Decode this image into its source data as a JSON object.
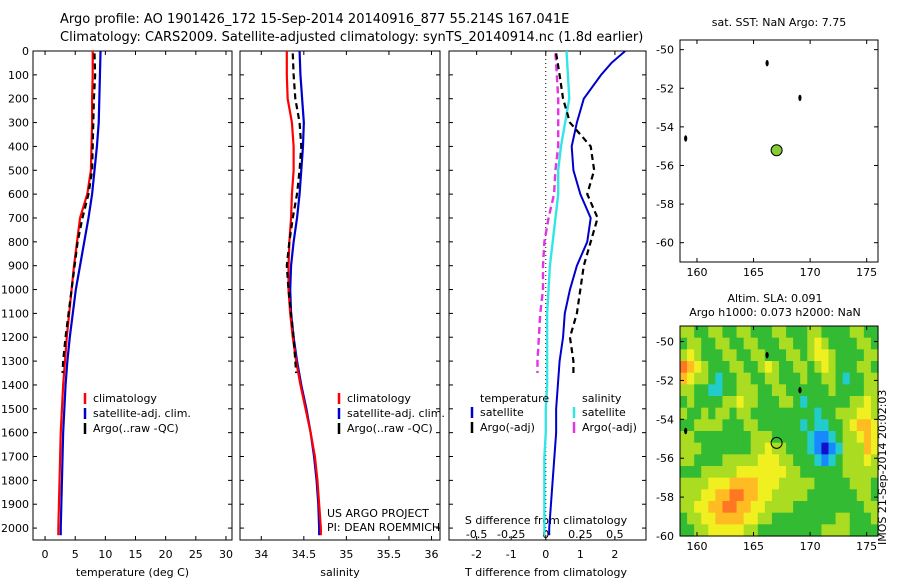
{
  "header": {
    "line1": "Argo profile: AO 1901426_172 15-Sep-2014 20140916_877 55.214S 167.041E",
    "line2": "Climatology: CARS2009. Satellite-adjusted climatology: synTS_20140914.nc (1.8d earlier)"
  },
  "colors": {
    "climatology": "#ff0000",
    "satellite": "#0000cc",
    "argo": "#000000",
    "diff_t_argo": "#000000",
    "diff_s_sat": "#33e6e6",
    "diff_s_argo": "#e633e6",
    "float_marker": "#88cc33"
  },
  "depth_ticks": [
    "0",
    "100",
    "200",
    "300",
    "400",
    "500",
    "600",
    "700",
    "800",
    "900",
    "1000",
    "1100",
    "1200",
    "1300",
    "1400",
    "1500",
    "1600",
    "1700",
    "1800",
    "1900",
    "2000"
  ],
  "chart_data": [
    {
      "type": "line",
      "xlabel": "temperature (deg C)",
      "xlim": [
        -2,
        31
      ],
      "ylim": [
        2050,
        0
      ],
      "xticks": [
        "0",
        "5",
        "10",
        "15",
        "20",
        "25",
        "30"
      ],
      "legend": [
        "climatology",
        "satellite-adj. clim.",
        "Argo(..raw -QC)"
      ],
      "series": [
        {
          "name": "climatology",
          "depth": [
            0,
            100,
            200,
            300,
            400,
            500,
            600,
            700,
            800,
            900,
            1000,
            1100,
            1200,
            1300,
            1400,
            1500,
            1600,
            1700,
            1800,
            1900,
            2000,
            2030
          ],
          "values": [
            7.9,
            7.9,
            7.8,
            7.8,
            7.7,
            7.6,
            7.0,
            5.8,
            5.3,
            4.8,
            4.4,
            4.0,
            3.6,
            3.3,
            3.0,
            2.8,
            2.6,
            2.5,
            2.4,
            2.3,
            2.2,
            2.2
          ]
        },
        {
          "name": "satellite-adj. clim.",
          "depth": [
            0,
            100,
            200,
            300,
            400,
            500,
            600,
            700,
            800,
            900,
            1000,
            1100,
            1200,
            1300,
            1400,
            1500,
            1600,
            1700,
            1800,
            1900,
            2000,
            2030
          ],
          "values": [
            9.2,
            9.1,
            9.0,
            8.9,
            8.6,
            8.2,
            7.8,
            7.2,
            6.5,
            5.8,
            5.1,
            4.6,
            4.1,
            3.7,
            3.4,
            3.2,
            3.0,
            2.9,
            2.8,
            2.7,
            2.6,
            2.6
          ]
        },
        {
          "name": "Argo(..raw -QC)",
          "depth": [
            10,
            100,
            200,
            300,
            400,
            500,
            600,
            700,
            800,
            900,
            1000,
            1100,
            1200,
            1300,
            1350
          ],
          "values": [
            8.2,
            8.3,
            8.1,
            8.0,
            7.9,
            7.8,
            7.2,
            6.2,
            5.4,
            4.9,
            4.4,
            3.9,
            3.4,
            3.0,
            2.9
          ]
        }
      ]
    },
    {
      "type": "line",
      "xlabel": "salinity",
      "xlim": [
        33.75,
        36.1
      ],
      "ylim": [
        2050,
        0
      ],
      "xticks": [
        "34",
        "34.5",
        "35",
        "35.5",
        "36"
      ],
      "legend": [
        "climatology",
        "satellite-adj. clim.",
        "Argo(..raw -QC)"
      ],
      "series": [
        {
          "name": "climatology",
          "depth": [
            0,
            100,
            200,
            300,
            400,
            500,
            600,
            700,
            800,
            900,
            1000,
            1100,
            1200,
            1300,
            1400,
            1500,
            1600,
            1700,
            1800,
            1900,
            2000,
            2030
          ],
          "values": [
            34.3,
            34.3,
            34.31,
            34.36,
            34.38,
            34.38,
            34.36,
            34.35,
            34.33,
            34.32,
            34.32,
            34.34,
            34.37,
            34.41,
            34.46,
            34.52,
            34.58,
            34.63,
            34.66,
            34.68,
            34.7,
            34.7
          ]
        },
        {
          "name": "satellite-adj. clim.",
          "depth": [
            0,
            100,
            200,
            300,
            400,
            500,
            600,
            700,
            800,
            900,
            1000,
            1100,
            1200,
            1300,
            1400,
            1500,
            1600,
            1700,
            1800,
            1900,
            2000,
            2030
          ],
          "values": [
            34.45,
            34.46,
            34.48,
            34.5,
            34.49,
            34.47,
            34.45,
            34.42,
            34.38,
            34.35,
            34.34,
            34.35,
            34.38,
            34.42,
            34.47,
            34.53,
            34.58,
            34.62,
            34.65,
            34.67,
            34.68,
            34.68
          ]
        },
        {
          "name": "Argo(..raw -QC)",
          "depth": [
            10,
            100,
            200,
            300,
            400,
            500,
            600,
            700,
            800,
            900,
            1000,
            1100,
            1200,
            1300,
            1350
          ],
          "values": [
            34.37,
            34.38,
            34.4,
            34.45,
            34.47,
            34.45,
            34.42,
            34.37,
            34.33,
            34.3,
            34.32,
            34.35,
            34.38,
            34.4,
            34.41
          ]
        }
      ],
      "annotation": [
        "US ARGO PROJECT",
        "PI: DEAN ROEMMICH"
      ]
    },
    {
      "type": "line",
      "xlabel": "T difference from climatology",
      "xlabel_top": "S difference from climatology",
      "xlim": [
        -2.8,
        2.9
      ],
      "ylim": [
        2050,
        0
      ],
      "xticks": [
        "-2",
        "-1",
        "0",
        "1",
        "2"
      ],
      "xticks_top": [
        "-0.5",
        "-0.25",
        "0",
        "0.25",
        "0.5"
      ],
      "legend_left": {
        "heading": "temperature",
        "entries": [
          "satellite",
          "Argo(-adj)"
        ]
      },
      "legend_right": {
        "heading": "salinity",
        "entries": [
          "satellite",
          "Argo(-adj)"
        ]
      },
      "series": [
        {
          "name": "satellite",
          "group": "temperature",
          "depth": [
            0,
            50,
            100,
            200,
            300,
            400,
            500,
            600,
            700,
            800,
            900,
            1000,
            1100,
            1200,
            1300,
            1400,
            1500,
            1600,
            1700,
            1800,
            1900,
            2000,
            2030
          ],
          "values": [
            2.3,
            1.9,
            1.6,
            1.1,
            0.9,
            0.75,
            0.8,
            1.0,
            1.3,
            1.2,
            0.9,
            0.7,
            0.55,
            0.5,
            0.4,
            0.35,
            0.3,
            0.3,
            0.25,
            0.2,
            0.15,
            0.1,
            0.1
          ]
        },
        {
          "name": "Argo(-adj)",
          "group": "temperature",
          "depth": [
            10,
            100,
            200,
            300,
            400,
            500,
            600,
            700,
            800,
            900,
            1000,
            1100,
            1200,
            1300,
            1350
          ],
          "values": [
            0.3,
            0.4,
            0.5,
            0.7,
            1.3,
            1.4,
            1.2,
            1.5,
            1.3,
            1.1,
            1.0,
            0.9,
            0.7,
            0.8,
            0.8
          ]
        },
        {
          "name": "satellite",
          "group": "salinity",
          "depth": [
            0,
            100,
            200,
            300,
            400,
            500,
            600,
            700,
            800,
            900,
            1000,
            1100,
            1200,
            1300,
            1400,
            1500,
            1600,
            1700,
            1800,
            1900,
            2000,
            2030
          ],
          "values": [
            0.15,
            0.16,
            0.17,
            0.14,
            0.11,
            0.09,
            0.09,
            0.07,
            0.05,
            0.03,
            0.02,
            0.01,
            0.01,
            0.01,
            0.01,
            0.0,
            0.0,
            -0.01,
            -0.01,
            -0.01,
            -0.01,
            -0.01
          ]
        },
        {
          "name": "Argo(-adj)",
          "group": "salinity",
          "depth": [
            10,
            100,
            200,
            300,
            400,
            500,
            600,
            700,
            800,
            900,
            1000,
            1100,
            1200,
            1300,
            1350
          ],
          "values": [
            0.07,
            0.08,
            0.09,
            0.09,
            0.09,
            0.07,
            0.06,
            0.02,
            -0.01,
            -0.02,
            -0.02,
            -0.04,
            -0.05,
            -0.06,
            -0.06
          ]
        }
      ]
    },
    {
      "type": "scatter",
      "title": "sat. SST: NaN Argo: 7.75",
      "xlim": [
        158.5,
        176
      ],
      "ylim": [
        -61,
        -49.5
      ],
      "xticks": [
        "160",
        "165",
        "170",
        "175"
      ],
      "yticks": [
        "-50",
        "-52",
        "-54",
        "-56",
        "-58",
        "-60"
      ],
      "points": [
        {
          "lon": 166.2,
          "lat": -50.7,
          "kind": "island"
        },
        {
          "lon": 169.1,
          "lat": -52.5,
          "kind": "island"
        },
        {
          "lon": 159.0,
          "lat": -54.6,
          "kind": "island"
        },
        {
          "lon": 167.04,
          "lat": -55.21,
          "kind": "float"
        }
      ]
    },
    {
      "type": "heatmap",
      "title_line1": "Altim. SLA: 0.091",
      "title_line2": "Argo h1000: 0.073 h2000: NaN",
      "xlim": [
        158.5,
        176
      ],
      "ylim": [
        -60,
        -49.2
      ],
      "xticks": [
        "160",
        "165",
        "170",
        "175"
      ],
      "yticks": [
        "-50",
        "-52",
        "-54",
        "-56",
        "-58",
        "-60"
      ],
      "colorscale": [
        "#1010c8",
        "#1888ff",
        "#22cccc",
        "#33bb33",
        "#aadd22",
        "#f0f020",
        "#ffbb22",
        "#ff7722"
      ],
      "grid_rows": [
        [
          4,
          4,
          3,
          3,
          4,
          4,
          3,
          3,
          4,
          4,
          3,
          3,
          3,
          4,
          4,
          3,
          3,
          3,
          4,
          4,
          3,
          3,
          3,
          3,
          4,
          4,
          3,
          3
        ],
        [
          3,
          4,
          4,
          3,
          3,
          4,
          4,
          3,
          3,
          4,
          4,
          3,
          3,
          3,
          4,
          4,
          3,
          3,
          4,
          5,
          4,
          3,
          3,
          3,
          3,
          4,
          4,
          3
        ],
        [
          4,
          5,
          4,
          3,
          3,
          3,
          4,
          4,
          3,
          3,
          4,
          4,
          3,
          3,
          3,
          4,
          4,
          3,
          4,
          5,
          5,
          4,
          3,
          3,
          3,
          3,
          4,
          4
        ],
        [
          7,
          6,
          5,
          4,
          3,
          3,
          3,
          4,
          4,
          3,
          3,
          4,
          5,
          4,
          3,
          3,
          4,
          4,
          3,
          4,
          5,
          4,
          3,
          3,
          3,
          4,
          4,
          3
        ],
        [
          6,
          5,
          4,
          4,
          3,
          2,
          3,
          3,
          4,
          4,
          3,
          3,
          4,
          4,
          3,
          3,
          3,
          4,
          3,
          3,
          4,
          4,
          3,
          2,
          3,
          3,
          4,
          4
        ],
        [
          4,
          4,
          3,
          3,
          2,
          2,
          3,
          3,
          4,
          4,
          4,
          3,
          3,
          4,
          4,
          3,
          3,
          3,
          3,
          3,
          3,
          4,
          3,
          3,
          3,
          3,
          4,
          4
        ],
        [
          3,
          4,
          3,
          3,
          3,
          3,
          4,
          4,
          5,
          4,
          4,
          3,
          3,
          3,
          4,
          4,
          3,
          2,
          3,
          3,
          3,
          3,
          3,
          3,
          4,
          4,
          5,
          4
        ],
        [
          4,
          3,
          3,
          4,
          3,
          4,
          4,
          3,
          4,
          4,
          3,
          3,
          3,
          3,
          3,
          3,
          3,
          3,
          3,
          2,
          3,
          3,
          4,
          4,
          4,
          5,
          5,
          4
        ],
        [
          3,
          3,
          4,
          4,
          4,
          4,
          3,
          3,
          3,
          4,
          4,
          3,
          3,
          3,
          3,
          3,
          3,
          2,
          3,
          2,
          2,
          3,
          3,
          4,
          5,
          6,
          6,
          5
        ],
        [
          4,
          4,
          3,
          3,
          3,
          3,
          3,
          3,
          3,
          3,
          4,
          4,
          4,
          3,
          3,
          3,
          3,
          3,
          2,
          1,
          1,
          2,
          3,
          4,
          4,
          5,
          6,
          5
        ],
        [
          4,
          4,
          4,
          3,
          3,
          3,
          3,
          3,
          3,
          3,
          4,
          4,
          5,
          4,
          4,
          3,
          3,
          3,
          2,
          1,
          0,
          1,
          2,
          4,
          4,
          4,
          6,
          5
        ],
        [
          4,
          4,
          3,
          3,
          3,
          3,
          4,
          4,
          4,
          4,
          4,
          5,
          5,
          5,
          4,
          4,
          3,
          3,
          3,
          2,
          1,
          2,
          3,
          4,
          4,
          4,
          5,
          4
        ],
        [
          3,
          3,
          3,
          4,
          4,
          4,
          4,
          4,
          5,
          5,
          5,
          5,
          5,
          5,
          5,
          4,
          4,
          3,
          3,
          3,
          3,
          3,
          3,
          4,
          4,
          4,
          4,
          4
        ],
        [
          4,
          4,
          4,
          4,
          5,
          5,
          5,
          6,
          6,
          6,
          6,
          5,
          5,
          5,
          4,
          4,
          4,
          4,
          4,
          3,
          3,
          3,
          3,
          3,
          4,
          4,
          4,
          3
        ],
        [
          4,
          4,
          4,
          5,
          5,
          6,
          6,
          7,
          7,
          6,
          6,
          5,
          5,
          4,
          4,
          4,
          4,
          4,
          3,
          3,
          3,
          3,
          3,
          3,
          3,
          4,
          4,
          3
        ],
        [
          4,
          4,
          5,
          5,
          6,
          6,
          7,
          7,
          6,
          6,
          5,
          5,
          4,
          4,
          4,
          4,
          3,
          3,
          3,
          3,
          3,
          3,
          3,
          3,
          3,
          3,
          4,
          4
        ],
        [
          3,
          4,
          4,
          5,
          5,
          6,
          6,
          6,
          6,
          5,
          5,
          4,
          4,
          3,
          3,
          3,
          3,
          3,
          3,
          3,
          3,
          3,
          4,
          4,
          3,
          3,
          3,
          4
        ],
        [
          3,
          3,
          4,
          4,
          5,
          5,
          5,
          5,
          5,
          4,
          4,
          3,
          3,
          3,
          3,
          3,
          3,
          3,
          3,
          3,
          4,
          4,
          4,
          4,
          3,
          3,
          3,
          3
        ]
      ],
      "points": [
        {
          "lon": 166.2,
          "lat": -50.7,
          "kind": "island"
        },
        {
          "lon": 169.1,
          "lat": -52.5,
          "kind": "island"
        },
        {
          "lon": 159.0,
          "lat": -54.6,
          "kind": "island"
        },
        {
          "lon": 167.04,
          "lat": -55.21,
          "kind": "float"
        }
      ]
    }
  ],
  "stamp": "IMOS 21-Sep-2014 20:02:03"
}
